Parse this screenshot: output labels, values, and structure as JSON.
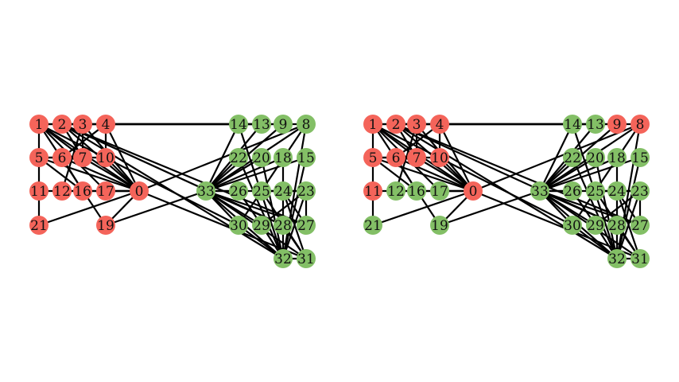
{
  "colors": {
    "red": "#f4645a",
    "green": "#83bf66",
    "edge": "#000000"
  },
  "panels": [
    {
      "name": "left-graph",
      "nodes": [
        {
          "id": "0",
          "color": "red"
        },
        {
          "id": "1",
          "color": "red"
        },
        {
          "id": "2",
          "color": "red"
        },
        {
          "id": "3",
          "color": "red"
        },
        {
          "id": "4",
          "color": "red"
        },
        {
          "id": "5",
          "color": "red"
        },
        {
          "id": "6",
          "color": "red"
        },
        {
          "id": "7",
          "color": "red"
        },
        {
          "id": "10",
          "color": "red"
        },
        {
          "id": "11",
          "color": "red"
        },
        {
          "id": "12",
          "color": "red"
        },
        {
          "id": "16",
          "color": "red"
        },
        {
          "id": "17",
          "color": "red"
        },
        {
          "id": "19",
          "color": "red"
        },
        {
          "id": "21",
          "color": "red"
        },
        {
          "id": "8",
          "color": "green"
        },
        {
          "id": "9",
          "color": "green"
        },
        {
          "id": "13",
          "color": "green"
        },
        {
          "id": "14",
          "color": "green"
        },
        {
          "id": "15",
          "color": "green"
        },
        {
          "id": "18",
          "color": "green"
        },
        {
          "id": "20",
          "color": "green"
        },
        {
          "id": "22",
          "color": "green"
        },
        {
          "id": "23",
          "color": "green"
        },
        {
          "id": "24",
          "color": "green"
        },
        {
          "id": "25",
          "color": "green"
        },
        {
          "id": "26",
          "color": "green"
        },
        {
          "id": "27",
          "color": "green"
        },
        {
          "id": "28",
          "color": "green"
        },
        {
          "id": "29",
          "color": "green"
        },
        {
          "id": "30",
          "color": "green"
        },
        {
          "id": "31",
          "color": "green"
        },
        {
          "id": "32",
          "color": "green"
        },
        {
          "id": "33",
          "color": "green"
        }
      ]
    },
    {
      "name": "right-graph",
      "nodes": [
        {
          "id": "0",
          "color": "red"
        },
        {
          "id": "1",
          "color": "red"
        },
        {
          "id": "2",
          "color": "red"
        },
        {
          "id": "3",
          "color": "red"
        },
        {
          "id": "4",
          "color": "red"
        },
        {
          "id": "5",
          "color": "red"
        },
        {
          "id": "6",
          "color": "red"
        },
        {
          "id": "7",
          "color": "red"
        },
        {
          "id": "10",
          "color": "red"
        },
        {
          "id": "11",
          "color": "red"
        },
        {
          "id": "8",
          "color": "red"
        },
        {
          "id": "9",
          "color": "red"
        },
        {
          "id": "12",
          "color": "green"
        },
        {
          "id": "16",
          "color": "green"
        },
        {
          "id": "17",
          "color": "green"
        },
        {
          "id": "19",
          "color": "green"
        },
        {
          "id": "21",
          "color": "green"
        },
        {
          "id": "13",
          "color": "green"
        },
        {
          "id": "14",
          "color": "green"
        },
        {
          "id": "15",
          "color": "green"
        },
        {
          "id": "18",
          "color": "green"
        },
        {
          "id": "20",
          "color": "green"
        },
        {
          "id": "22",
          "color": "green"
        },
        {
          "id": "23",
          "color": "green"
        },
        {
          "id": "24",
          "color": "green"
        },
        {
          "id": "25",
          "color": "green"
        },
        {
          "id": "26",
          "color": "green"
        },
        {
          "id": "27",
          "color": "green"
        },
        {
          "id": "28",
          "color": "green"
        },
        {
          "id": "29",
          "color": "green"
        },
        {
          "id": "30",
          "color": "green"
        },
        {
          "id": "31",
          "color": "green"
        },
        {
          "id": "32",
          "color": "green"
        },
        {
          "id": "33",
          "color": "green"
        }
      ]
    }
  ],
  "edges": [
    [
      "0",
      "1"
    ],
    [
      "0",
      "2"
    ],
    [
      "0",
      "3"
    ],
    [
      "0",
      "4"
    ],
    [
      "0",
      "5"
    ],
    [
      "0",
      "6"
    ],
    [
      "0",
      "7"
    ],
    [
      "0",
      "10"
    ],
    [
      "0",
      "11"
    ],
    [
      "0",
      "12"
    ],
    [
      "0",
      "17"
    ],
    [
      "0",
      "19"
    ],
    [
      "0",
      "21"
    ],
    [
      "0",
      "8"
    ],
    [
      "0",
      "31"
    ],
    [
      "1",
      "2"
    ],
    [
      "1",
      "3"
    ],
    [
      "1",
      "7"
    ],
    [
      "1",
      "17"
    ],
    [
      "1",
      "19"
    ],
    [
      "1",
      "21"
    ],
    [
      "1",
      "30"
    ],
    [
      "2",
      "3"
    ],
    [
      "2",
      "7"
    ],
    [
      "2",
      "8"
    ],
    [
      "2",
      "13"
    ],
    [
      "2",
      "27"
    ],
    [
      "2",
      "28"
    ],
    [
      "2",
      "32"
    ],
    [
      "3",
      "7"
    ],
    [
      "3",
      "12"
    ],
    [
      "3",
      "13"
    ],
    [
      "3",
      "9"
    ],
    [
      "4",
      "6"
    ],
    [
      "4",
      "10"
    ],
    [
      "4",
      "14"
    ],
    [
      "5",
      "6"
    ],
    [
      "5",
      "10"
    ],
    [
      "5",
      "16"
    ],
    [
      "6",
      "16"
    ],
    [
      "8",
      "30"
    ],
    [
      "8",
      "32"
    ],
    [
      "8",
      "33"
    ],
    [
      "9",
      "33"
    ],
    [
      "13",
      "33"
    ],
    [
      "14",
      "32"
    ],
    [
      "14",
      "33"
    ],
    [
      "15",
      "32"
    ],
    [
      "15",
      "33"
    ],
    [
      "18",
      "32"
    ],
    [
      "18",
      "33"
    ],
    [
      "19",
      "33"
    ],
    [
      "20",
      "32"
    ],
    [
      "20",
      "33"
    ],
    [
      "22",
      "32"
    ],
    [
      "22",
      "33"
    ],
    [
      "23",
      "25"
    ],
    [
      "23",
      "27"
    ],
    [
      "23",
      "29"
    ],
    [
      "23",
      "32"
    ],
    [
      "23",
      "33"
    ],
    [
      "24",
      "25"
    ],
    [
      "24",
      "27"
    ],
    [
      "24",
      "31"
    ],
    [
      "25",
      "31"
    ],
    [
      "26",
      "29"
    ],
    [
      "26",
      "33"
    ],
    [
      "27",
      "33"
    ],
    [
      "28",
      "31"
    ],
    [
      "28",
      "33"
    ],
    [
      "29",
      "32"
    ],
    [
      "29",
      "33"
    ],
    [
      "30",
      "32"
    ],
    [
      "30",
      "33"
    ],
    [
      "31",
      "32"
    ],
    [
      "31",
      "33"
    ],
    [
      "32",
      "33"
    ]
  ]
}
